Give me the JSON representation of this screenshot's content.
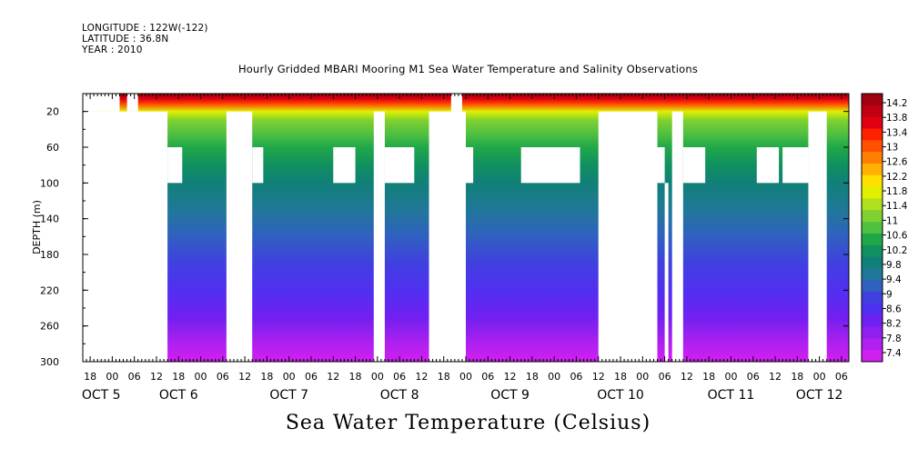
{
  "header": {
    "longitude": "LONGITUDE : 122W(-122)",
    "latitude": "LATITUDE : 36.8N",
    "year": "YEAR : 2010"
  },
  "chart_data": {
    "type": "heatmap",
    "title": "Hourly Gridded MBARI Mooring M1 Sea Water Temperature and Salinity Observations",
    "variable_label": "Sea Water Temperature (Celsius)",
    "ylabel": "DEPTH (m)",
    "xlabel": "",
    "x_range_hours": [
      0,
      208
    ],
    "ylim": [
      300,
      0
    ],
    "y_ticks": [
      20,
      60,
      100,
      140,
      180,
      220,
      260,
      300
    ],
    "x_hour_ticks": [
      {
        "h": 2,
        "label": "18"
      },
      {
        "h": 8,
        "label": "00"
      },
      {
        "h": 14,
        "label": "06"
      },
      {
        "h": 20,
        "label": "12"
      },
      {
        "h": 26,
        "label": "18"
      },
      {
        "h": 32,
        "label": "00"
      },
      {
        "h": 38,
        "label": "06"
      },
      {
        "h": 44,
        "label": "12"
      },
      {
        "h": 50,
        "label": "18"
      },
      {
        "h": 56,
        "label": "00"
      },
      {
        "h": 62,
        "label": "06"
      },
      {
        "h": 68,
        "label": "12"
      },
      {
        "h": 74,
        "label": "18"
      },
      {
        "h": 80,
        "label": "00"
      },
      {
        "h": 86,
        "label": "06"
      },
      {
        "h": 92,
        "label": "12"
      },
      {
        "h": 98,
        "label": "18"
      },
      {
        "h": 104,
        "label": "00"
      },
      {
        "h": 110,
        "label": "06"
      },
      {
        "h": 116,
        "label": "12"
      },
      {
        "h": 122,
        "label": "18"
      },
      {
        "h": 128,
        "label": "00"
      },
      {
        "h": 134,
        "label": "06"
      },
      {
        "h": 140,
        "label": "12"
      },
      {
        "h": 146,
        "label": "18"
      },
      {
        "h": 152,
        "label": "00"
      },
      {
        "h": 158,
        "label": "06"
      },
      {
        "h": 164,
        "label": "12"
      },
      {
        "h": 170,
        "label": "18"
      },
      {
        "h": 176,
        "label": "00"
      },
      {
        "h": 182,
        "label": "06"
      },
      {
        "h": 188,
        "label": "12"
      },
      {
        "h": 194,
        "label": "18"
      },
      {
        "h": 200,
        "label": "00"
      },
      {
        "h": 206,
        "label": "06"
      }
    ],
    "day_labels": [
      {
        "h": 5,
        "label": "OCT  5"
      },
      {
        "h": 26,
        "label": "OCT  6"
      },
      {
        "h": 56,
        "label": "OCT  7"
      },
      {
        "h": 86,
        "label": "OCT  8"
      },
      {
        "h": 116,
        "label": "OCT  9"
      },
      {
        "h": 146,
        "label": "OCT 10"
      },
      {
        "h": 176,
        "label": "OCT 11"
      },
      {
        "h": 200,
        "label": "OCT 12"
      }
    ],
    "temperature_profile": [
      {
        "depth": 0,
        "value": 14.2
      },
      {
        "depth": 6,
        "value": 13.6
      },
      {
        "depth": 12,
        "value": 12.8
      },
      {
        "depth": 20,
        "value": 11.8
      },
      {
        "depth": 30,
        "value": 11.1
      },
      {
        "depth": 45,
        "value": 10.7
      },
      {
        "depth": 60,
        "value": 10.4
      },
      {
        "depth": 80,
        "value": 10.1
      },
      {
        "depth": 100,
        "value": 9.9
      },
      {
        "depth": 130,
        "value": 9.6
      },
      {
        "depth": 160,
        "value": 9.3
      },
      {
        "depth": 190,
        "value": 9.0
      },
      {
        "depth": 220,
        "value": 8.7
      },
      {
        "depth": 250,
        "value": 8.3
      },
      {
        "depth": 280,
        "value": 7.9
      },
      {
        "depth": 300,
        "value": 7.5
      }
    ],
    "missing_regions": [
      {
        "h0": 0,
        "h1": 23,
        "d0": 20,
        "d1": 300
      },
      {
        "h0": 0,
        "h1": 10,
        "d0": 0,
        "d1": 20
      },
      {
        "h0": 12,
        "h1": 15,
        "d0": 0,
        "d1": 20
      },
      {
        "h0": 23,
        "h1": 27,
        "d0": 60,
        "d1": 100
      },
      {
        "h0": 39,
        "h1": 46,
        "d0": 20,
        "d1": 300
      },
      {
        "h0": 46,
        "h1": 49,
        "d0": 60,
        "d1": 100
      },
      {
        "h0": 68,
        "h1": 74,
        "d0": 60,
        "d1": 100
      },
      {
        "h0": 79,
        "h1": 82,
        "d0": 20,
        "d1": 300
      },
      {
        "h0": 82,
        "h1": 90,
        "d0": 60,
        "d1": 100
      },
      {
        "h0": 94,
        "h1": 104,
        "d0": 20,
        "d1": 300
      },
      {
        "h0": 100,
        "h1": 103,
        "d0": 0,
        "d1": 20
      },
      {
        "h0": 104,
        "h1": 106,
        "d0": 60,
        "d1": 100
      },
      {
        "h0": 119,
        "h1": 135,
        "d0": 60,
        "d1": 100
      },
      {
        "h0": 140,
        "h1": 156,
        "d0": 20,
        "d1": 300
      },
      {
        "h0": 156,
        "h1": 158,
        "d0": 60,
        "d1": 100
      },
      {
        "h0": 158,
        "h1": 159,
        "d0": 100,
        "d1": 300
      },
      {
        "h0": 160,
        "h1": 163,
        "d0": 20,
        "d1": 300
      },
      {
        "h0": 163,
        "h1": 169,
        "d0": 60,
        "d1": 100
      },
      {
        "h0": 183,
        "h1": 189,
        "d0": 60,
        "d1": 100
      },
      {
        "h0": 190,
        "h1": 197,
        "d0": 60,
        "d1": 100
      },
      {
        "h0": 197,
        "h1": 202,
        "d0": 20,
        "d1": 300
      }
    ],
    "colorbar": {
      "labels": [
        "14.2",
        "13.8",
        "13.4",
        "13",
        "12.6",
        "12.2",
        "11.8",
        "11.4",
        "11",
        "10.6",
        "10.2",
        "9.8",
        "9.4",
        "9",
        "8.6",
        "8.2",
        "7.8",
        "7.4"
      ],
      "colors": [
        "#a00010",
        "#c00010",
        "#e00010",
        "#ff2000",
        "#ff5000",
        "#ff8000",
        "#ffb000",
        "#ffe000",
        "#e0f000",
        "#b0e020",
        "#80d030",
        "#50c040",
        "#20a848",
        "#109060",
        "#108078",
        "#207898",
        "#3060c0",
        "#4040e0",
        "#5030f0",
        "#7020f0",
        "#9020f0",
        "#b020f0",
        "#d020f0"
      ]
    }
  }
}
